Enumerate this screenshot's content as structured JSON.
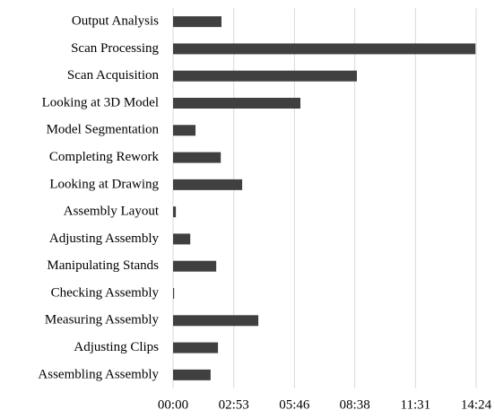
{
  "chart_data": {
    "type": "bar",
    "orientation": "horizontal",
    "categories": [
      "Output Analysis",
      "Scan Processing",
      "Scan Acquisition",
      "Looking at 3D Model",
      "Model Segmentation",
      "Completing Rework",
      "Looking at Drawing",
      "Assembly Layout",
      "Adjusting Assembly",
      "Manipulating Stands",
      "Checking Assembly",
      "Measuring Assembly",
      "Adjusting Clips",
      "Assembling Assembly"
    ],
    "values": [
      138,
      862,
      524,
      363,
      64,
      136,
      197,
      8,
      49,
      123,
      3,
      243,
      128,
      107
    ],
    "color": "#404040",
    "xlim": [
      0,
      864
    ],
    "xticks": [
      {
        "value": 0,
        "label": "00:00"
      },
      {
        "value": 173,
        "label": "02:53"
      },
      {
        "value": 346,
        "label": "05:46"
      },
      {
        "value": 518,
        "label": "08:38"
      },
      {
        "value": 691,
        "label": "11:31"
      },
      {
        "value": 864,
        "label": "14:24"
      }
    ],
    "grid": true
  }
}
